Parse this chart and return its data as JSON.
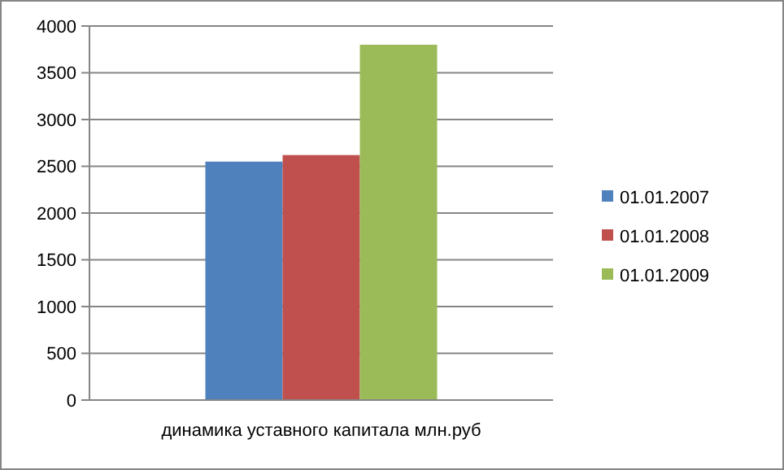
{
  "chart_data": {
    "type": "bar",
    "categories": [
      "динамика уставного капитала млн.руб"
    ],
    "series": [
      {
        "name": "01.01.2007",
        "color": "#4f81bd",
        "values": [
          2550
        ]
      },
      {
        "name": "01.01.2008",
        "color": "#c0504d",
        "values": [
          2620
        ]
      },
      {
        "name": "01.01.2009",
        "color": "#9bbb59",
        "values": [
          3800
        ]
      }
    ],
    "ylim": [
      0,
      4000
    ],
    "yticks": [
      0,
      500,
      1000,
      1500,
      2000,
      2500,
      3000,
      3500,
      4000
    ],
    "grid": "y",
    "legend": "right"
  }
}
